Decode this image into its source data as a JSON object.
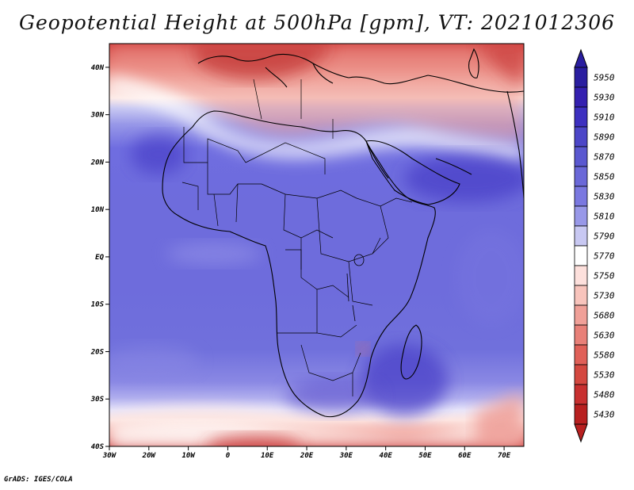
{
  "title": "Geopotential Height at 500hPa [gpm], VT: 2021012306",
  "credit": "GrADS: IGES/COLA",
  "map": {
    "lat_labels": [
      "40N",
      "30N",
      "20N",
      "10N",
      "EQ",
      "10S",
      "20S",
      "30S",
      "40S"
    ],
    "lon_labels": [
      "30W",
      "20W",
      "10W",
      "0",
      "10E",
      "20E",
      "30E",
      "40E",
      "50E",
      "60E",
      "70E"
    ],
    "extent": {
      "lon_min": -30,
      "lon_max": 75,
      "lat_min": -40,
      "lat_max": 45
    }
  },
  "colorbar": {
    "levels": [
      "5950",
      "5930",
      "5910",
      "5890",
      "5870",
      "5850",
      "5830",
      "5810",
      "5790",
      "5770",
      "5750",
      "5730",
      "5680",
      "5630",
      "5580",
      "5530",
      "5480",
      "5430"
    ],
    "colors": [
      "#2a1ea0",
      "#3420b0",
      "#3d30c0",
      "#4c46c8",
      "#5a58d0",
      "#6a68d8",
      "#7a78e0",
      "#9898e8",
      "#c8c8f2",
      "#ffffff",
      "#fde0dc",
      "#f8c4bc",
      "#f0a098",
      "#e88078",
      "#e06058",
      "#d44840",
      "#c83030",
      "#b82020"
    ]
  }
}
